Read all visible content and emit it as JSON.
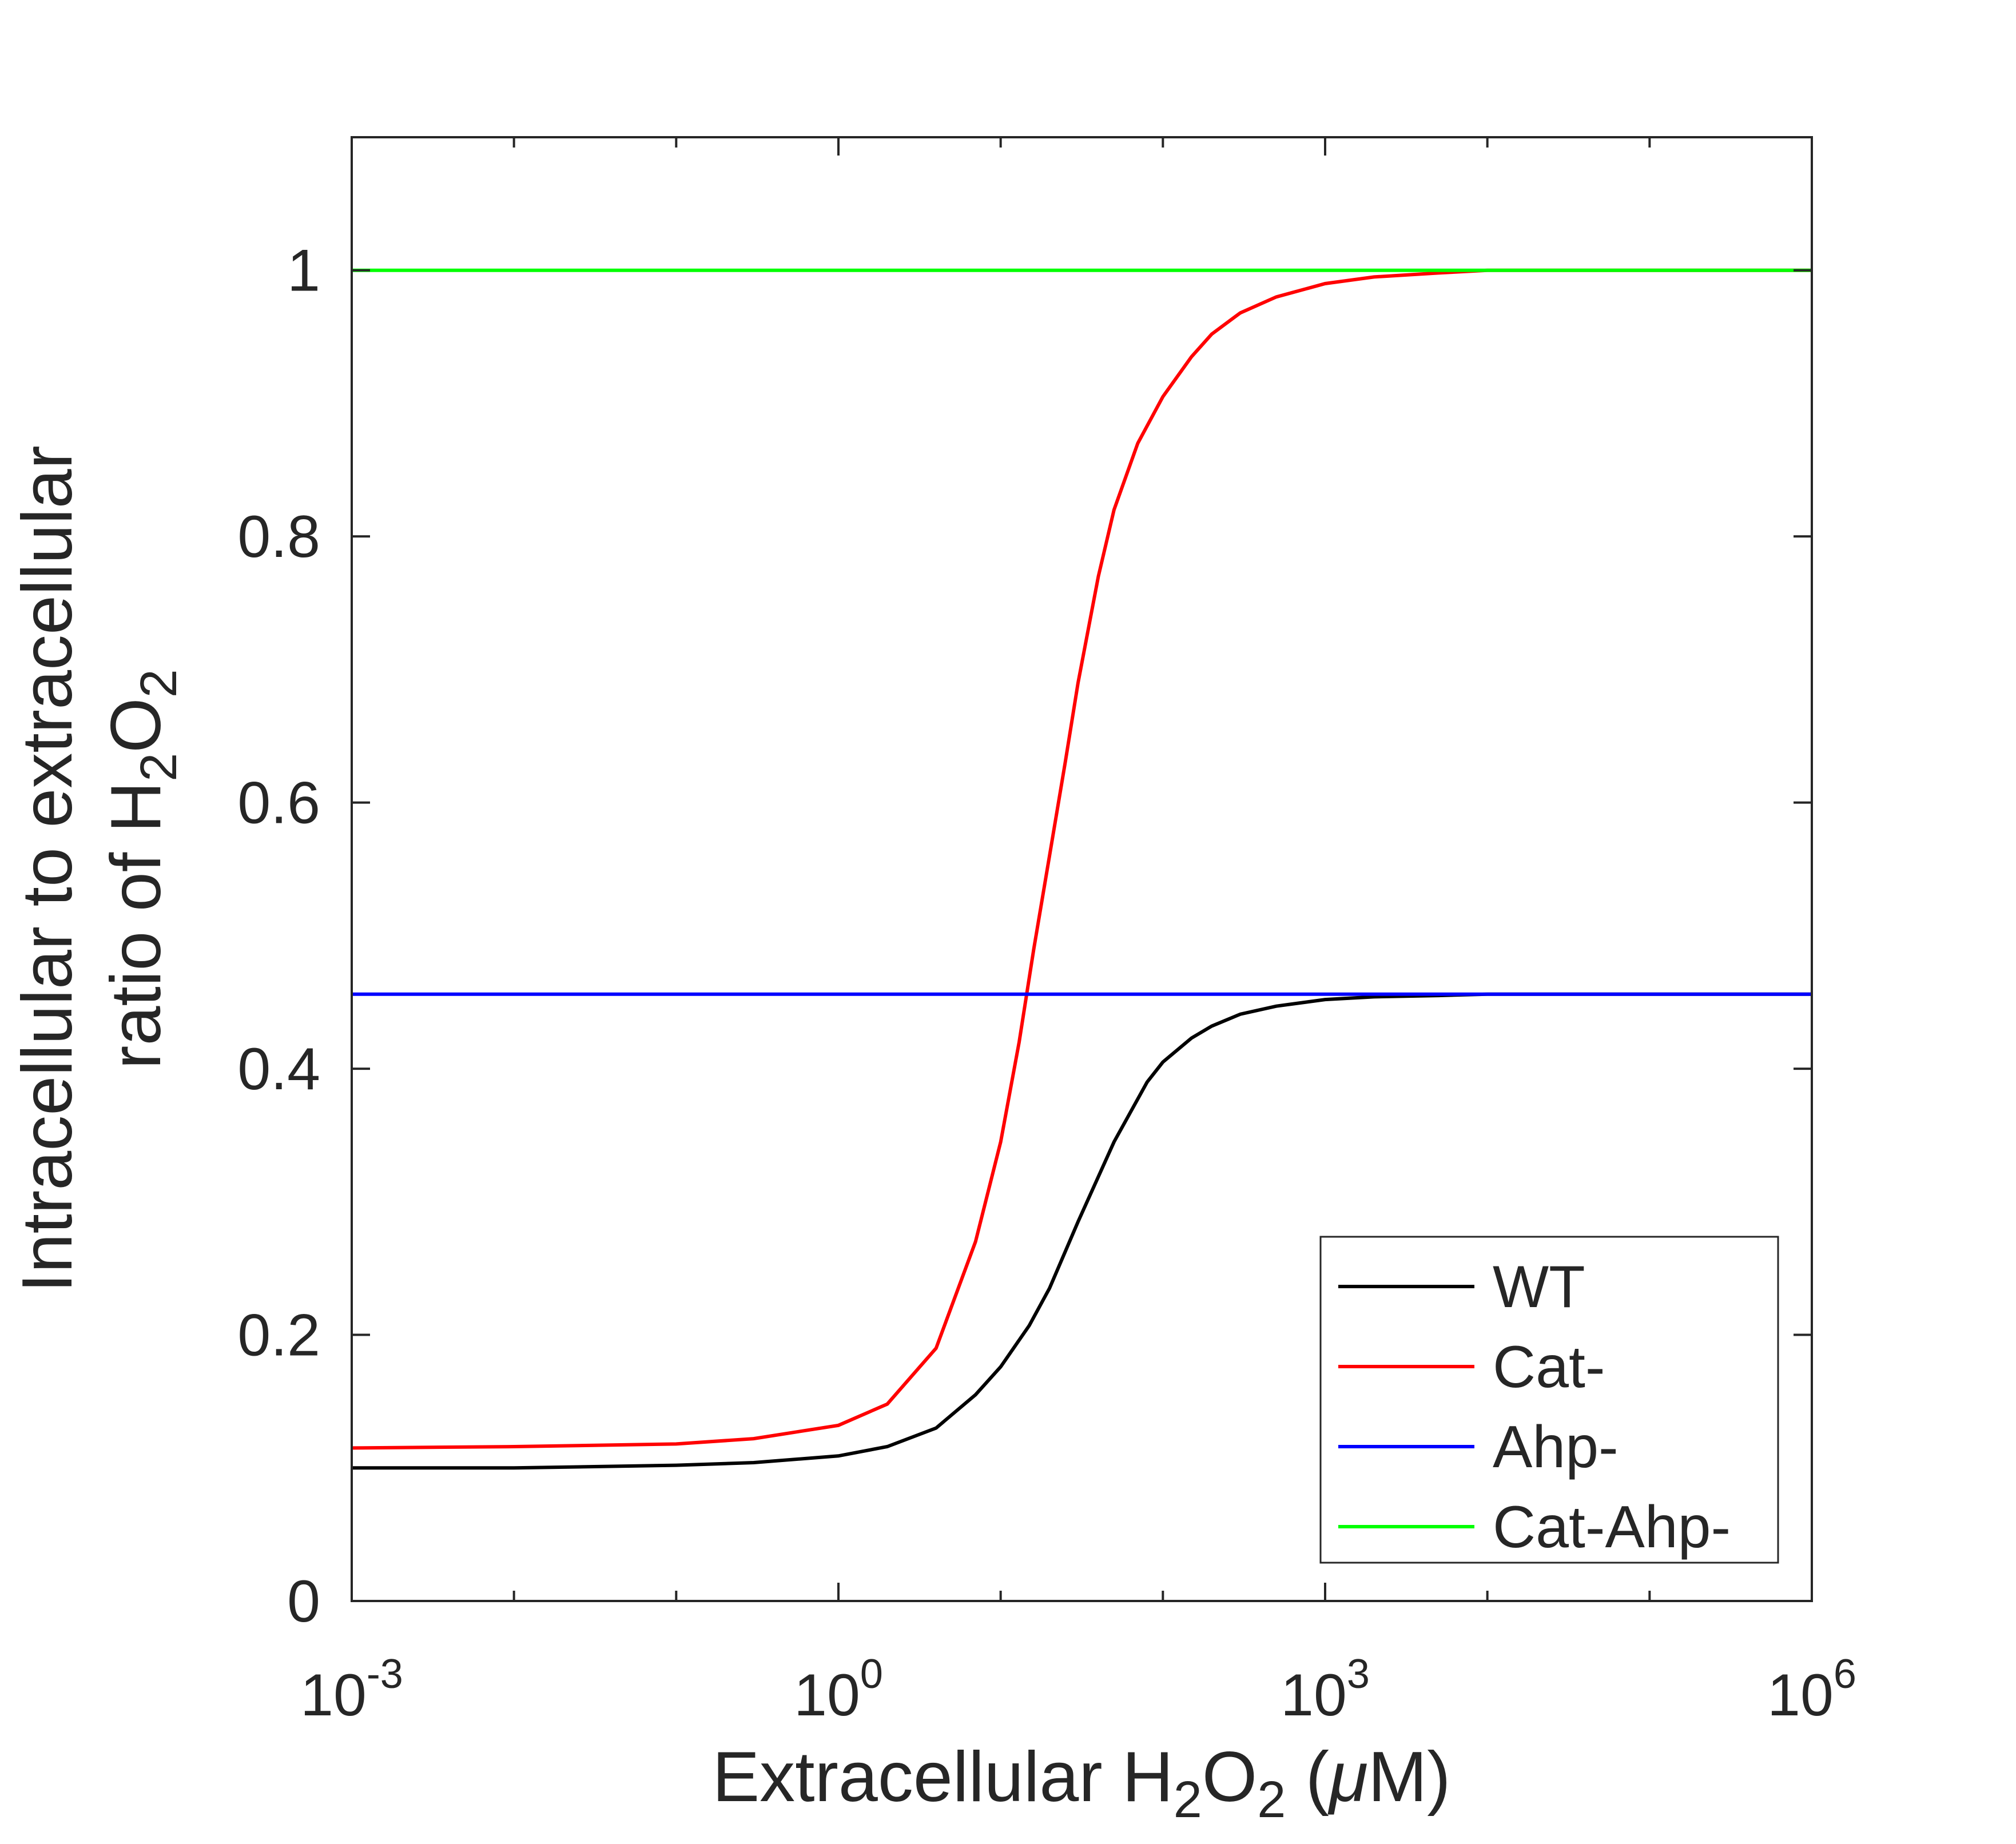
{
  "chart_data": {
    "type": "line",
    "title": "",
    "xlabel": {
      "prefix": "Extracellular H",
      "sub1": "2",
      "mid": "O",
      "sub2": "2",
      "suffix_open": " (",
      "mu": "μ",
      "suffix_close": "M)"
    },
    "ylabel": {
      "line1": "Intracellular to extracellular",
      "line2_prefix": "ratio of H",
      "line2_sub1": "2",
      "line2_mid": "O",
      "line2_sub2": "2"
    },
    "x_scale": "log",
    "xlim": [
      0.001,
      1000000
    ],
    "ylim": [
      0,
      1.1
    ],
    "x_ticks": [
      {
        "value": 0.001,
        "base": "10",
        "exp": "-3"
      },
      {
        "value": 1,
        "base": "10",
        "exp": "0"
      },
      {
        "value": 1000,
        "base": "10",
        "exp": "3"
      },
      {
        "value": 1000000,
        "base": "10",
        "exp": "6"
      }
    ],
    "x_minor_ticks": [
      0.01,
      0.1,
      10,
      100,
      10000,
      100000
    ],
    "y_ticks": [
      {
        "value": 0,
        "label": "0"
      },
      {
        "value": 0.2,
        "label": "0.2"
      },
      {
        "value": 0.4,
        "label": "0.4"
      },
      {
        "value": 0.6,
        "label": "0.6"
      },
      {
        "value": 0.8,
        "label": "0.8"
      },
      {
        "value": 1,
        "label": "1"
      }
    ],
    "grid": false,
    "legend_position": "bottom-right",
    "series": [
      {
        "name": "WT",
        "color": "#000000",
        "x": [
          0.001,
          0.01,
          0.1,
          0.3,
          1,
          2,
          4,
          7,
          10,
          15,
          20,
          30,
          50,
          80,
          100,
          150,
          200,
          300,
          500,
          1000,
          2000,
          5000,
          10000,
          100000,
          1000000
        ],
        "y": [
          0.1,
          0.1,
          0.102,
          0.104,
          0.109,
          0.116,
          0.13,
          0.155,
          0.176,
          0.207,
          0.235,
          0.285,
          0.345,
          0.39,
          0.405,
          0.423,
          0.432,
          0.441,
          0.447,
          0.452,
          0.454,
          0.455,
          0.456,
          0.456,
          0.456
        ]
      },
      {
        "name": "Cat-",
        "color": "#ff0000",
        "x": [
          0.001,
          0.01,
          0.1,
          0.3,
          1,
          2,
          4,
          7,
          10,
          13,
          16,
          20,
          25,
          30,
          40,
          50,
          70,
          100,
          150,
          200,
          300,
          500,
          1000,
          2000,
          5000,
          10000,
          100000,
          1000000
        ],
        "y": [
          0.115,
          0.116,
          0.118,
          0.122,
          0.132,
          0.148,
          0.19,
          0.27,
          0.345,
          0.42,
          0.49,
          0.56,
          0.63,
          0.69,
          0.77,
          0.82,
          0.87,
          0.905,
          0.935,
          0.952,
          0.968,
          0.98,
          0.99,
          0.995,
          0.998,
          1.0,
          1.0,
          1.0
        ]
      },
      {
        "name": "Ahp-",
        "color": "#0000ff",
        "x": [
          0.001,
          1000000
        ],
        "y": [
          0.456,
          0.456
        ]
      },
      {
        "name": "Cat-Ahp-",
        "color": "#00ff00",
        "x": [
          0.001,
          1000000
        ],
        "y": [
          1.0,
          1.0
        ]
      }
    ]
  }
}
